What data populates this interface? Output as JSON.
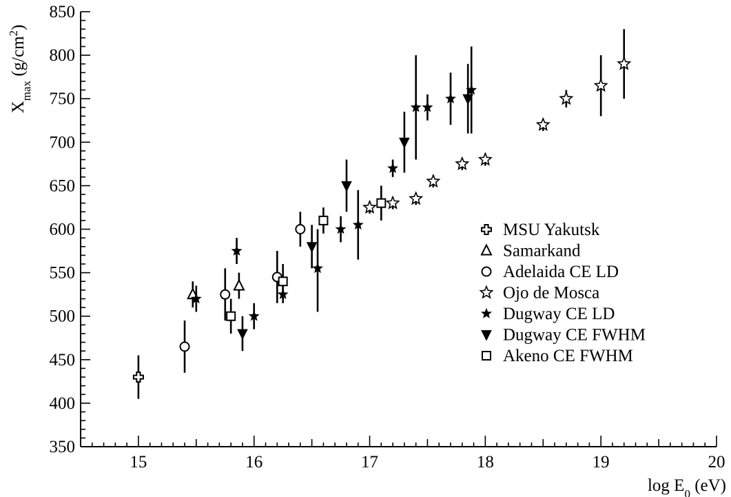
{
  "chart_data": {
    "type": "scatter",
    "title": "",
    "xlabel": {
      "main": "log E",
      "sub": "0",
      "unit": " (eV)"
    },
    "ylabel": {
      "main": "X",
      "sub": "max",
      "unit": " (g/cm",
      "sup": "2",
      "close": ")"
    },
    "xlim": [
      14.5,
      20
    ],
    "ylim": [
      350,
      850
    ],
    "x_ticks": [
      15,
      16,
      17,
      18,
      19,
      20
    ],
    "y_ticks": [
      350,
      400,
      450,
      500,
      550,
      600,
      650,
      700,
      750,
      800,
      850
    ],
    "grid": false,
    "legend_position": "right-middle",
    "series": [
      {
        "name": "MSU Yakutsk",
        "marker": "cross-open",
        "points": [
          {
            "x": 15.0,
            "y": 430,
            "lo": 405,
            "hi": 455
          }
        ]
      },
      {
        "name": "Samarkand",
        "marker": "triangle-open",
        "points": [
          {
            "x": 15.47,
            "y": 525,
            "lo": 510,
            "hi": 540
          },
          {
            "x": 15.87,
            "y": 535,
            "lo": 520,
            "hi": 550
          }
        ]
      },
      {
        "name": "Adelaida CE LD",
        "marker": "circle-open",
        "points": [
          {
            "x": 15.4,
            "y": 465,
            "lo": 435,
            "hi": 495
          },
          {
            "x": 15.75,
            "y": 525,
            "lo": 495,
            "hi": 555
          },
          {
            "x": 16.2,
            "y": 545,
            "lo": 515,
            "hi": 575
          },
          {
            "x": 16.4,
            "y": 600,
            "lo": 580,
            "hi": 620
          }
        ]
      },
      {
        "name": "Ojo de Mosca",
        "marker": "star-open",
        "points": [
          {
            "x": 17.0,
            "y": 625,
            "lo": 618,
            "hi": 632
          },
          {
            "x": 17.2,
            "y": 630,
            "lo": 623,
            "hi": 637
          },
          {
            "x": 17.4,
            "y": 635,
            "lo": 628,
            "hi": 642
          },
          {
            "x": 17.55,
            "y": 655,
            "lo": 648,
            "hi": 662
          },
          {
            "x": 17.8,
            "y": 675,
            "lo": 668,
            "hi": 682
          },
          {
            "x": 18.0,
            "y": 680,
            "lo": 673,
            "hi": 687
          },
          {
            "x": 18.5,
            "y": 720,
            "lo": 713,
            "hi": 727
          },
          {
            "x": 18.7,
            "y": 750,
            "lo": 740,
            "hi": 760
          },
          {
            "x": 19.0,
            "y": 765,
            "lo": 730,
            "hi": 800
          },
          {
            "x": 19.2,
            "y": 790,
            "lo": 750,
            "hi": 830
          }
        ]
      },
      {
        "name": "Dugway CE LD",
        "marker": "star-filled",
        "points": [
          {
            "x": 15.5,
            "y": 520,
            "lo": 505,
            "hi": 535
          },
          {
            "x": 15.85,
            "y": 575,
            "lo": 560,
            "hi": 590
          },
          {
            "x": 16.0,
            "y": 500,
            "lo": 485,
            "hi": 515
          },
          {
            "x": 16.25,
            "y": 525,
            "lo": 515,
            "hi": 535
          },
          {
            "x": 16.55,
            "y": 555,
            "lo": 505,
            "hi": 600
          },
          {
            "x": 16.75,
            "y": 600,
            "lo": 585,
            "hi": 615
          },
          {
            "x": 16.9,
            "y": 605,
            "lo": 565,
            "hi": 645
          },
          {
            "x": 17.2,
            "y": 670,
            "lo": 660,
            "hi": 680
          },
          {
            "x": 17.4,
            "y": 740,
            "lo": 680,
            "hi": 800
          },
          {
            "x": 17.5,
            "y": 740,
            "lo": 725,
            "hi": 755
          },
          {
            "x": 17.7,
            "y": 750,
            "lo": 720,
            "hi": 780
          },
          {
            "x": 17.88,
            "y": 760,
            "lo": 710,
            "hi": 810
          }
        ]
      },
      {
        "name": "Dugway CE FWHM",
        "marker": "triangle-down-filled",
        "points": [
          {
            "x": 15.9,
            "y": 480,
            "lo": 460,
            "hi": 500
          },
          {
            "x": 16.5,
            "y": 580,
            "lo": 555,
            "hi": 605
          },
          {
            "x": 16.8,
            "y": 650,
            "lo": 620,
            "hi": 680
          },
          {
            "x": 17.3,
            "y": 700,
            "lo": 665,
            "hi": 735
          },
          {
            "x": 17.85,
            "y": 750,
            "lo": 710,
            "hi": 790
          }
        ]
      },
      {
        "name": "Akeno CE FWHM",
        "marker": "square-open",
        "points": [
          {
            "x": 15.8,
            "y": 500,
            "lo": 480,
            "hi": 520
          },
          {
            "x": 16.25,
            "y": 540,
            "lo": 520,
            "hi": 560
          },
          {
            "x": 16.6,
            "y": 610,
            "lo": 595,
            "hi": 625
          },
          {
            "x": 17.1,
            "y": 630,
            "lo": 610,
            "hi": 650
          }
        ]
      }
    ]
  }
}
